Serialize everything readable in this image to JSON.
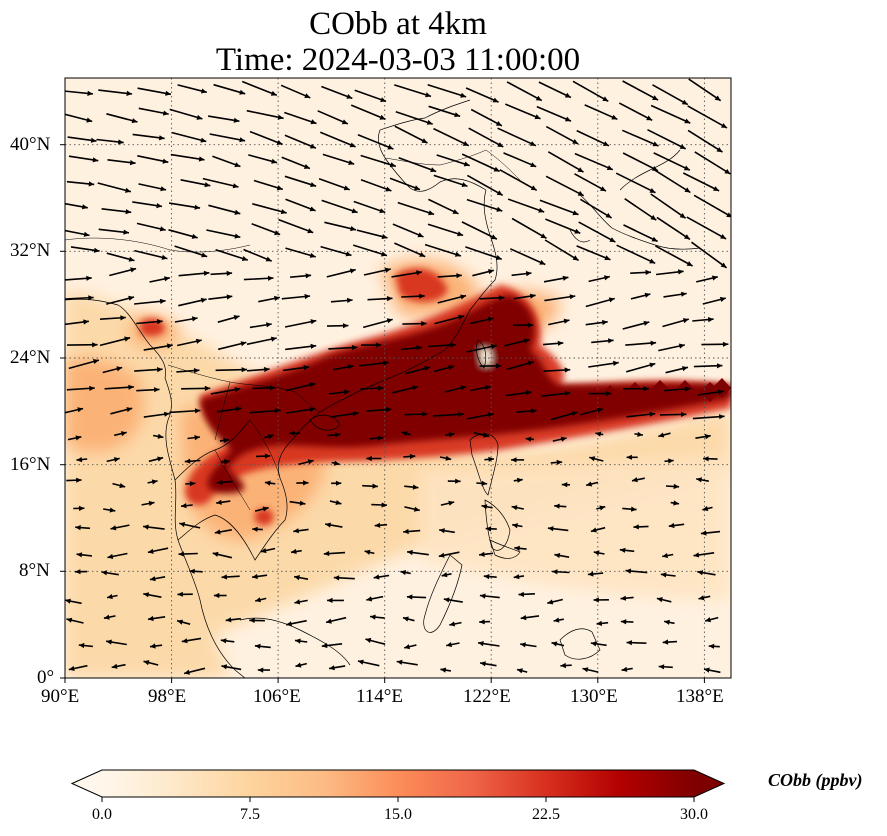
{
  "title": "CObb at 4km",
  "subtitle": "Time: 2024-03-03 11:00:00",
  "map": {
    "region": {
      "lon_min": 90,
      "lon_max": 140,
      "lat_min": 0,
      "lat_max": 45
    },
    "projection": "PlateCarree",
    "gridlines": "dotted",
    "lon_ticks": [
      90,
      98,
      106,
      114,
      122,
      130,
      138
    ],
    "lat_ticks": [
      0,
      8,
      16,
      24,
      32,
      40
    ],
    "lon_tick_labels": [
      "90°E",
      "98°E",
      "106°E",
      "114°E",
      "122°E",
      "130°E",
      "138°E"
    ],
    "lat_tick_labels": [
      "0°",
      "8°N",
      "16°N",
      "24°N",
      "32°N",
      "40°N"
    ],
    "field": "CObb",
    "field_summary": "Plume with values above 30 ppbv from Myanmar/Laos/northern Vietnam through South China and Taiwan to the Pacific near 21°N; 7.5–20 ppbv across Indochina and the Bay of Bengal; low values over the north and southeast.",
    "wind": "westerly winds over most of the domain, northwesterly over Japan/Korea, easterly south of about 12°N"
  },
  "colorbar": {
    "label": "CObb (ppbv)",
    "min": 0.0,
    "max": 30.0,
    "extend": "both",
    "cmap": "OrRd",
    "ticks": [
      0.0,
      7.5,
      15.0,
      22.5,
      30.0
    ],
    "tick_labels": [
      "0.0",
      "7.5",
      "15.0",
      "22.5",
      "30.0"
    ],
    "colors": [
      "#fff7ec",
      "#fee8c8",
      "#fdd49e",
      "#fdbb84",
      "#fc8d59",
      "#ef6548",
      "#d7301f",
      "#b30000",
      "#7f0000"
    ]
  }
}
